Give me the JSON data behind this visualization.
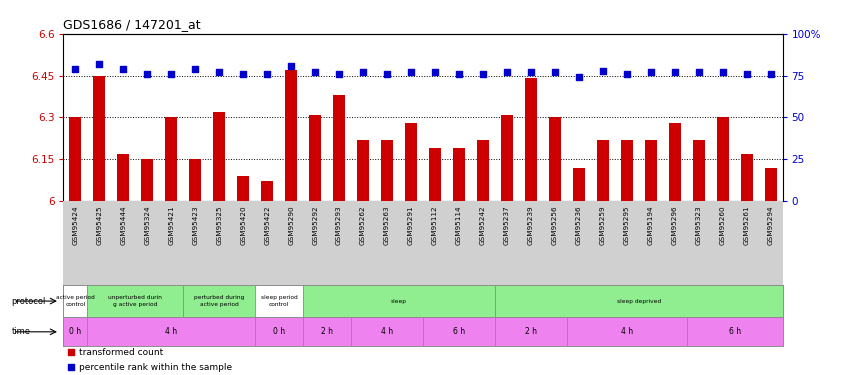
{
  "title": "GDS1686 / 147201_at",
  "samples": [
    "GSM95424",
    "GSM95425",
    "GSM95444",
    "GSM95324",
    "GSM95421",
    "GSM95423",
    "GSM95325",
    "GSM95420",
    "GSM95422",
    "GSM95290",
    "GSM95292",
    "GSM95293",
    "GSM95262",
    "GSM95263",
    "GSM95291",
    "GSM95112",
    "GSM95114",
    "GSM95242",
    "GSM95237",
    "GSM95239",
    "GSM95256",
    "GSM95236",
    "GSM95259",
    "GSM95295",
    "GSM95194",
    "GSM95296",
    "GSM95323",
    "GSM95260",
    "GSM95261",
    "GSM95294"
  ],
  "red_values": [
    6.3,
    6.45,
    6.17,
    6.15,
    6.3,
    6.15,
    6.32,
    6.09,
    6.07,
    6.47,
    6.31,
    6.38,
    6.22,
    6.22,
    6.28,
    6.19,
    6.19,
    6.22,
    6.31,
    6.44,
    6.3,
    6.12,
    6.22,
    6.22,
    6.22,
    6.28,
    6.22,
    6.3,
    6.17,
    6.12
  ],
  "blue_values": [
    79,
    82,
    79,
    76,
    76,
    79,
    77,
    76,
    76,
    81,
    77,
    76,
    77,
    76,
    77,
    77,
    76,
    76,
    77,
    77,
    77,
    74,
    78,
    76,
    77,
    77,
    77,
    77,
    76,
    76
  ],
  "ymin": 6.0,
  "ymax": 6.6,
  "y_ticks": [
    6.0,
    6.15,
    6.3,
    6.45,
    6.6
  ],
  "y_tick_labels": [
    "6",
    "6.15",
    "6.3",
    "6.45",
    "6.6"
  ],
  "y2min": 0,
  "y2max": 100,
  "y2_ticks": [
    0,
    25,
    50,
    75,
    100
  ],
  "y2_tick_labels": [
    "0",
    "25",
    "50",
    "75",
    "100%"
  ],
  "protocol_groups": [
    {
      "label": "active period\ncontrol",
      "start": 0,
      "end": 1,
      "color": "#ffffff"
    },
    {
      "label": "unperturbed durin\ng active period",
      "start": 1,
      "end": 5,
      "color": "#90ee90"
    },
    {
      "label": "perturbed during\nactive period",
      "start": 5,
      "end": 8,
      "color": "#90ee90"
    },
    {
      "label": "sleep period\ncontrol",
      "start": 8,
      "end": 10,
      "color": "#ffffff"
    },
    {
      "label": "sleep",
      "start": 10,
      "end": 18,
      "color": "#90ee90"
    },
    {
      "label": "sleep deprived",
      "start": 18,
      "end": 30,
      "color": "#90ee90"
    }
  ],
  "time_groups": [
    {
      "label": "0 h",
      "start": 0,
      "end": 1,
      "color": "#ee82ee"
    },
    {
      "label": "4 h",
      "start": 1,
      "end": 8,
      "color": "#ee82ee"
    },
    {
      "label": "0 h",
      "start": 8,
      "end": 10,
      "color": "#ee82ee"
    },
    {
      "label": "2 h",
      "start": 10,
      "end": 12,
      "color": "#ee82ee"
    },
    {
      "label": "4 h",
      "start": 12,
      "end": 15,
      "color": "#ee82ee"
    },
    {
      "label": "6 h",
      "start": 15,
      "end": 18,
      "color": "#ee82ee"
    },
    {
      "label": "2 h",
      "start": 18,
      "end": 21,
      "color": "#ee82ee"
    },
    {
      "label": "4 h",
      "start": 21,
      "end": 26,
      "color": "#ee82ee"
    },
    {
      "label": "6 h",
      "start": 26,
      "end": 30,
      "color": "#ee82ee"
    }
  ],
  "bar_color": "#cc0000",
  "dot_color": "#0000cc",
  "background_color": "#ffffff",
  "xtick_bg": "#d0d0d0"
}
